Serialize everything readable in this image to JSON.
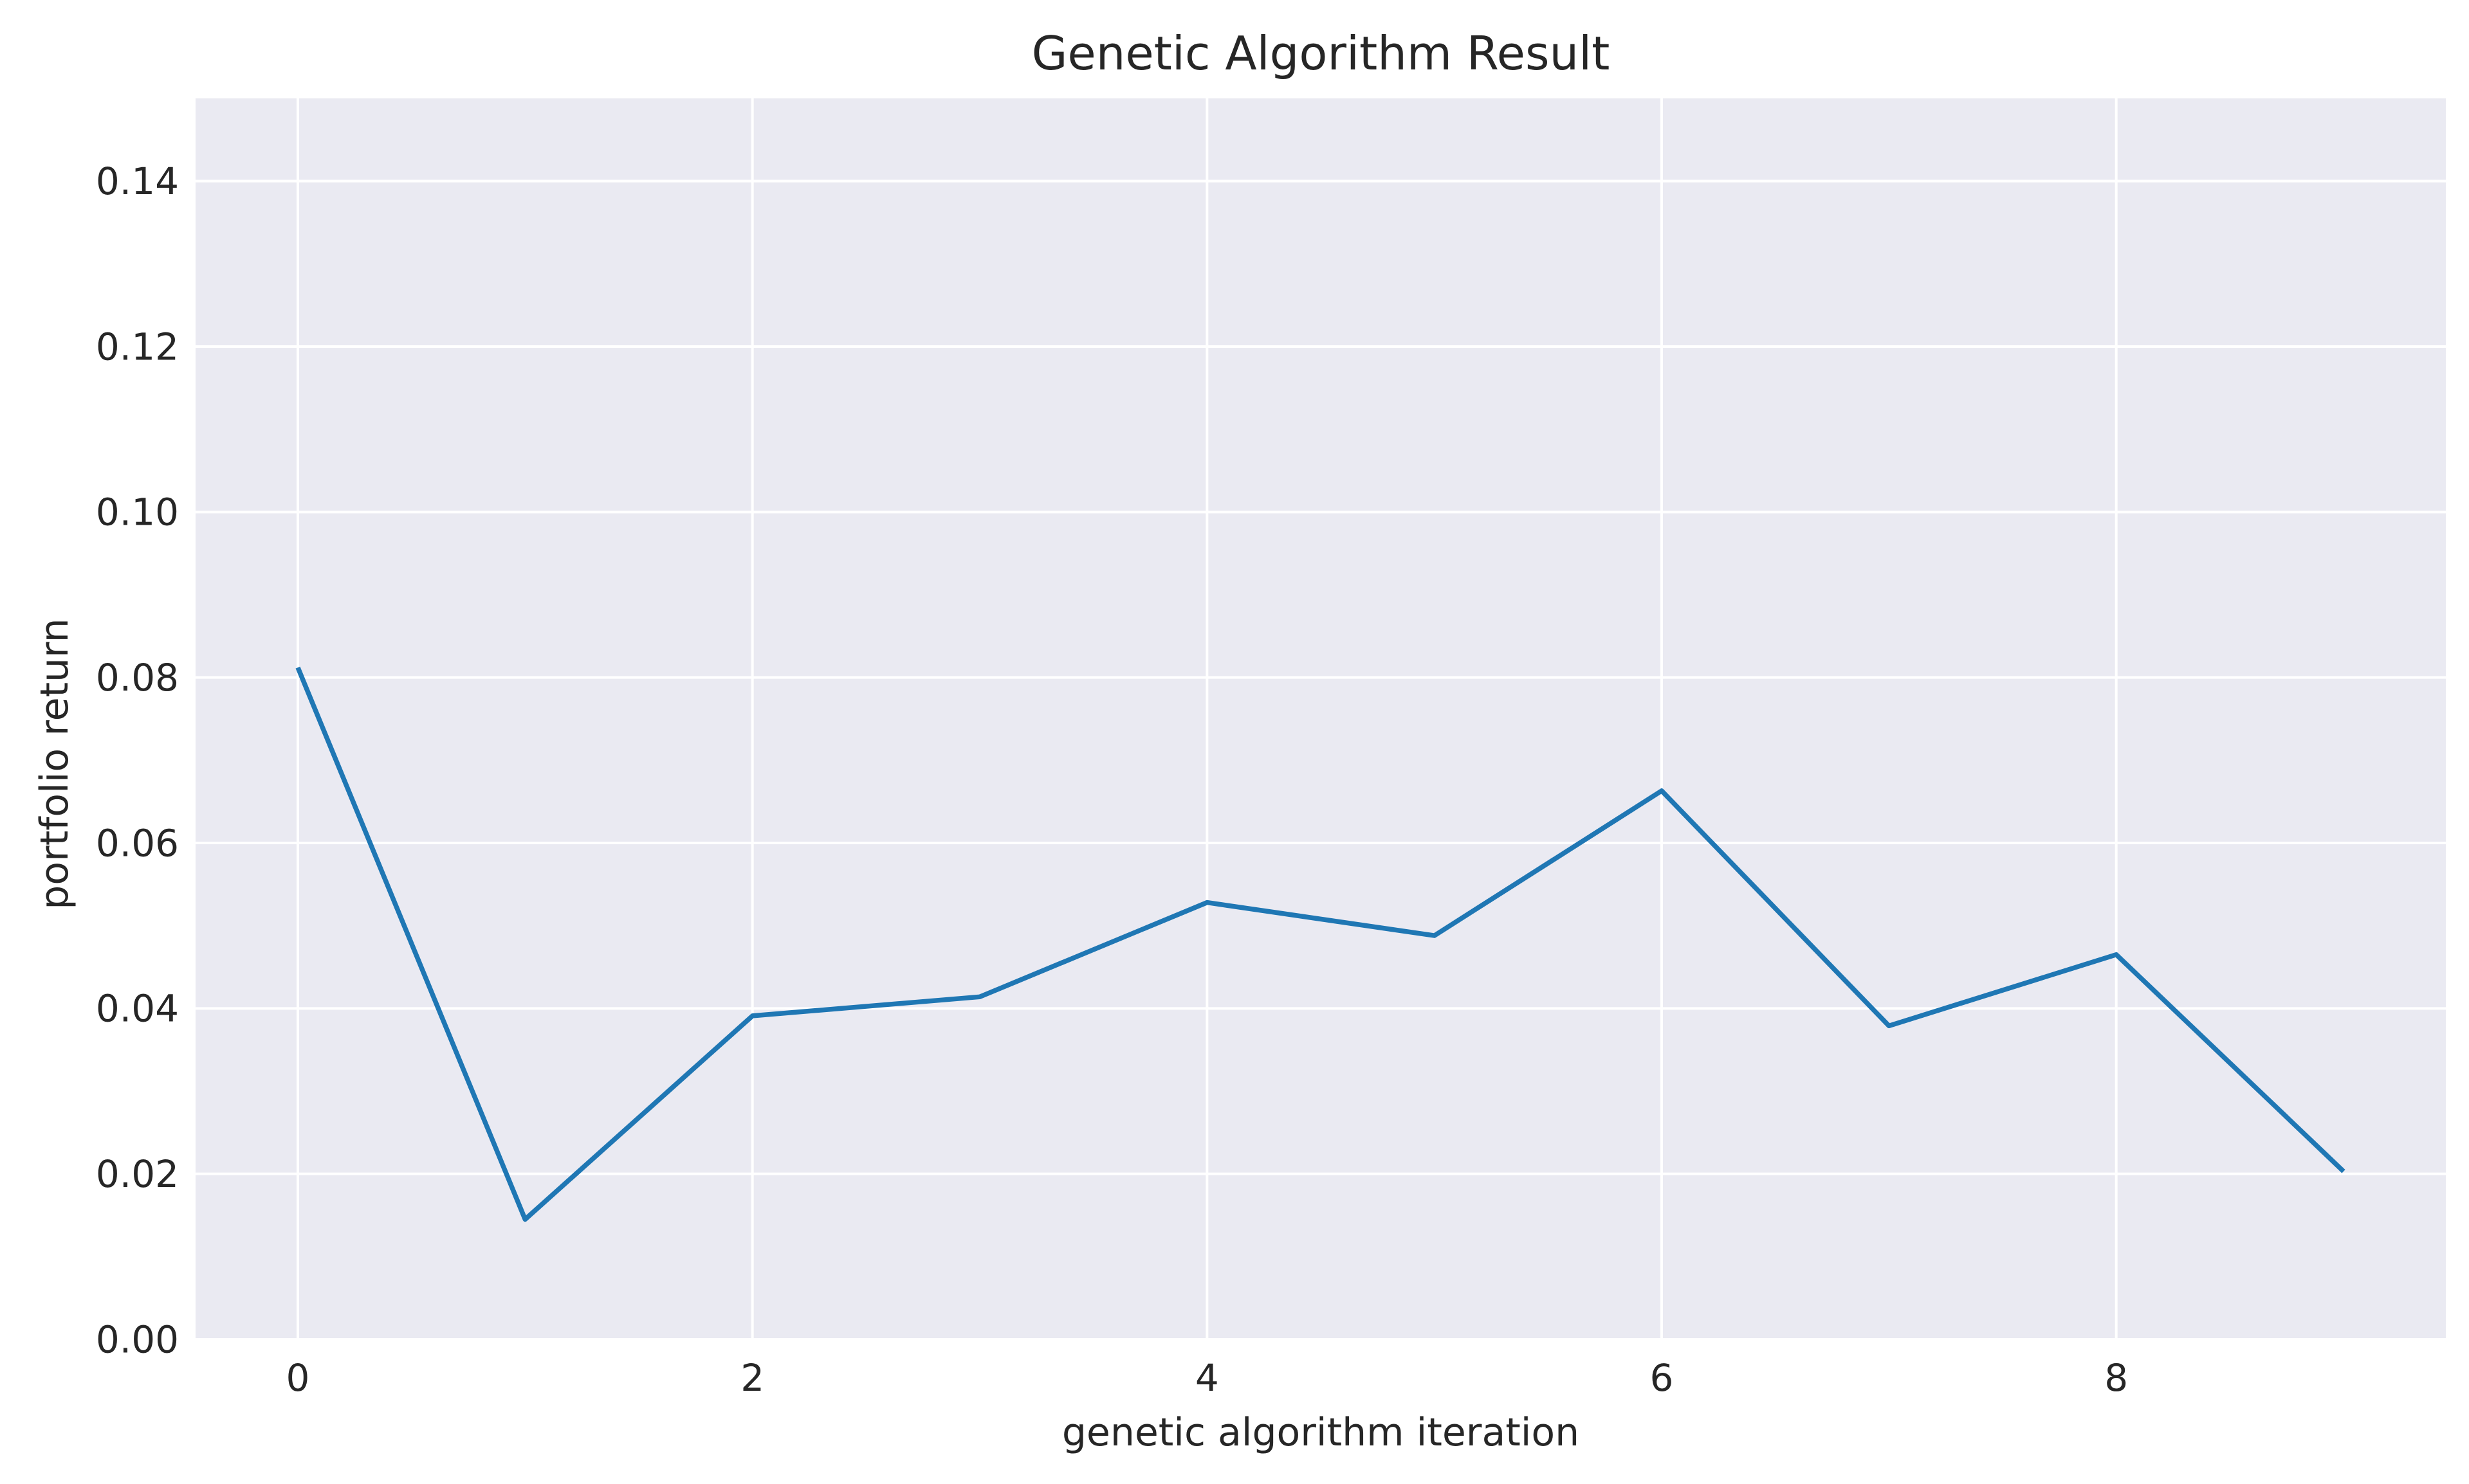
{
  "chart_data": {
    "type": "line",
    "title": "Genetic Algorithm Result",
    "xlabel": "genetic algorithm iteration",
    "ylabel": "portfolio return",
    "x": [
      0,
      1,
      2,
      3,
      4,
      5,
      6,
      7,
      8,
      9
    ],
    "series": [
      {
        "values": [
          0.0812,
          0.0145,
          0.0391,
          0.0414,
          0.0528,
          0.0488,
          0.0663,
          0.0379,
          0.0465,
          0.0203
        ]
      }
    ],
    "xlim": [
      -0.45,
      9.45
    ],
    "ylim": [
      0.0,
      0.15
    ],
    "xticks": [
      0,
      2,
      4,
      6,
      8
    ],
    "xtick_labels": [
      "0",
      "2",
      "4",
      "6",
      "8"
    ],
    "yticks": [
      0.0,
      0.02,
      0.04,
      0.06,
      0.08,
      0.1,
      0.12,
      0.14
    ],
    "ytick_labels": [
      "0.00",
      "0.02",
      "0.04",
      "0.06",
      "0.08",
      "0.10",
      "0.12",
      "0.14"
    ],
    "grid": true,
    "style": "seaborn-darkgrid",
    "colors": {
      "background": "#eaeaf2",
      "grid": "#ffffff",
      "line": "#1f77b4",
      "text": "#262626"
    }
  }
}
